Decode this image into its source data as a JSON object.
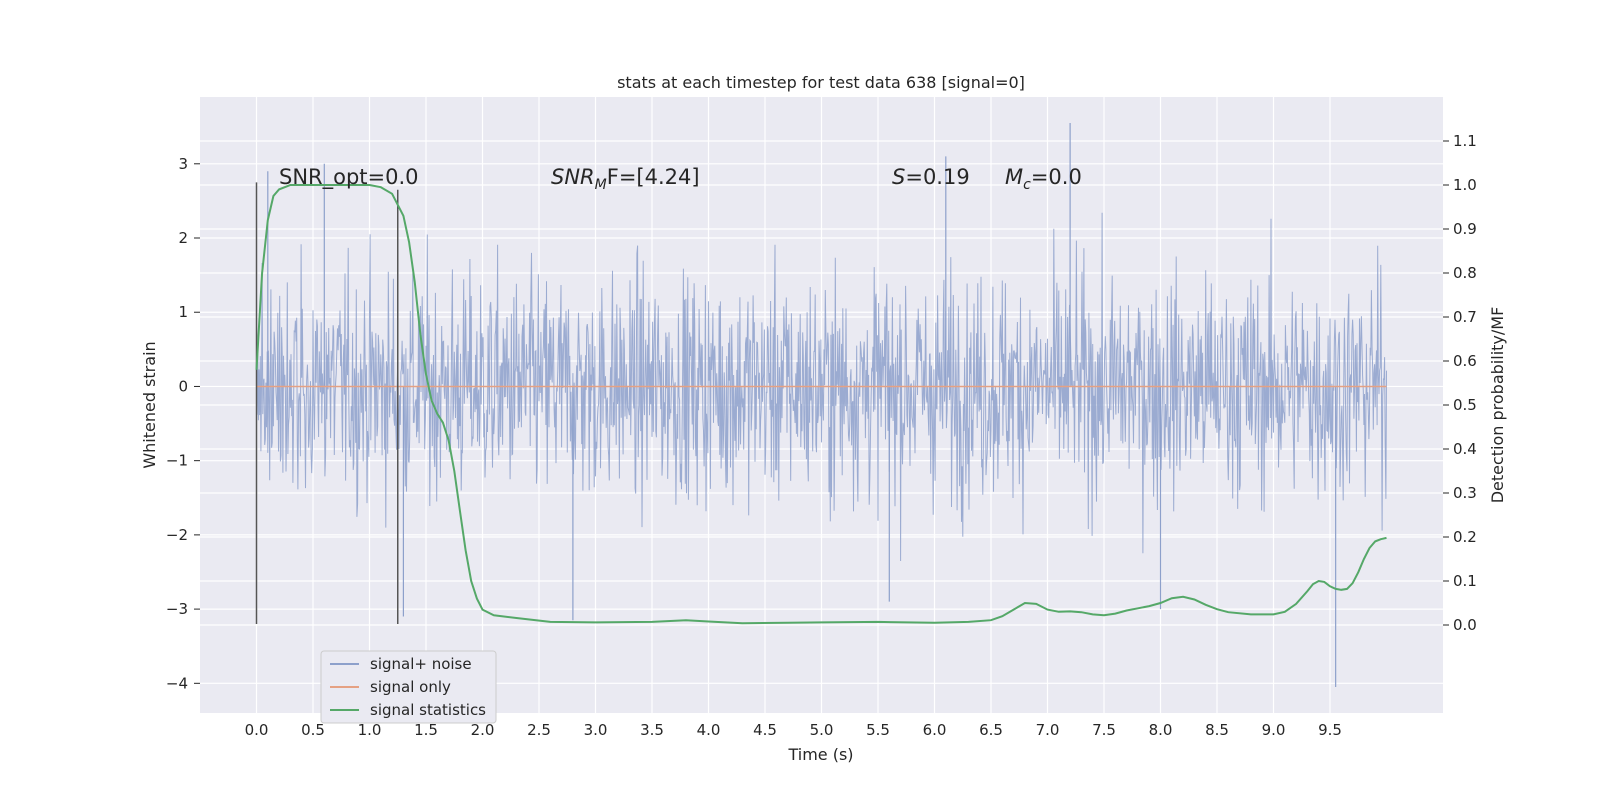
{
  "chart_data": {
    "type": "line",
    "title": "stats at each timestep for test data 638 [signal=0]",
    "xlabel": "Time (s)",
    "ylabel": "Whitened strain",
    "y2label": "Detection probability/MF",
    "xlim": [
      -0.5,
      10.5
    ],
    "ylim": [
      -4.4,
      3.9
    ],
    "y2lim": [
      -0.2,
      1.2
    ],
    "x_ticks": [
      "0.0",
      "0.5",
      "1.0",
      "1.5",
      "2.0",
      "2.5",
      "3.0",
      "3.5",
      "4.0",
      "4.5",
      "5.0",
      "5.5",
      "6.0",
      "6.5",
      "7.0",
      "7.5",
      "8.0",
      "8.5",
      "9.0",
      "9.5"
    ],
    "y_ticks": [
      "3",
      "2",
      "1",
      "0",
      "−1",
      "−2",
      "−3",
      "−4"
    ],
    "y2_ticks": [
      "1.1",
      "1.0",
      "0.9",
      "0.8",
      "0.7",
      "0.6",
      "0.5",
      "0.4",
      "0.3",
      "0.2",
      "0.1",
      "0.0"
    ],
    "grid": true,
    "annotations": {
      "snr_opt": "SNR_opt=0.0",
      "snr_mf_base": "SNR",
      "snr_mf_sub": "M",
      "snr_mf_rest": "F=[4.24]",
      "s_italic": "S",
      "s_value": "=0.19",
      "mc_base": "M",
      "mc_sub": "c",
      "mc_value": "=0.0"
    },
    "vlines": [
      {
        "x": 0.0,
        "ymin": -3.2,
        "ymax": 2.75
      },
      {
        "x": 1.25,
        "ymin": -3.2,
        "ymax": 2.65
      }
    ],
    "series": [
      {
        "name": "signal+ noise",
        "color": "#8da0cb",
        "x_range": [
          0.0,
          10.0
        ],
        "envelope_typical": 1.5,
        "peak_values": [
          [
            0.1,
            2.9
          ],
          [
            0.6,
            3.0
          ],
          [
            1.3,
            -3.1
          ],
          [
            2.8,
            -3.15
          ],
          [
            6.1,
            3.1
          ],
          [
            7.2,
            3.55
          ],
          [
            5.6,
            -2.9
          ],
          [
            9.55,
            -4.05
          ],
          [
            8.0,
            -3.0
          ]
        ]
      },
      {
        "name": "signal only",
        "color": "#e5a183",
        "x": [
          0.0,
          10.0
        ],
        "y": [
          0.0,
          0.0
        ]
      },
      {
        "name": "signal statistics",
        "color": "#55a868",
        "axis": "right",
        "x": [
          0.0,
          0.05,
          0.1,
          0.15,
          0.2,
          0.3,
          0.5,
          0.8,
          1.0,
          1.1,
          1.2,
          1.3,
          1.35,
          1.4,
          1.45,
          1.5,
          1.55,
          1.6,
          1.65,
          1.7,
          1.75,
          1.8,
          1.85,
          1.9,
          1.95,
          2.0,
          2.1,
          2.3,
          2.6,
          3.0,
          3.5,
          3.8,
          4.0,
          4.3,
          4.7,
          5.0,
          5.5,
          6.0,
          6.3,
          6.5,
          6.6,
          6.7,
          6.8,
          6.9,
          7.0,
          7.1,
          7.2,
          7.3,
          7.4,
          7.5,
          7.6,
          7.7,
          7.8,
          7.9,
          8.0,
          8.1,
          8.2,
          8.3,
          8.4,
          8.5,
          8.6,
          8.8,
          9.0,
          9.1,
          9.2,
          9.3,
          9.35,
          9.4,
          9.45,
          9.5,
          9.55,
          9.6,
          9.65,
          9.7,
          9.75,
          9.8,
          9.85,
          9.9,
          9.95,
          10.0
        ],
        "y": [
          0.58,
          0.8,
          0.92,
          0.975,
          0.99,
          1.0,
          1.0,
          1.0,
          1.0,
          0.995,
          0.98,
          0.93,
          0.87,
          0.78,
          0.66,
          0.57,
          0.51,
          0.48,
          0.46,
          0.42,
          0.35,
          0.26,
          0.17,
          0.1,
          0.06,
          0.035,
          0.022,
          0.016,
          0.007,
          0.006,
          0.007,
          0.011,
          0.008,
          0.004,
          0.005,
          0.006,
          0.007,
          0.005,
          0.007,
          0.011,
          0.02,
          0.035,
          0.05,
          0.048,
          0.035,
          0.03,
          0.031,
          0.029,
          0.024,
          0.022,
          0.026,
          0.033,
          0.038,
          0.043,
          0.05,
          0.061,
          0.064,
          0.058,
          0.046,
          0.036,
          0.029,
          0.024,
          0.024,
          0.03,
          0.048,
          0.077,
          0.093,
          0.1,
          0.098,
          0.088,
          0.082,
          0.08,
          0.082,
          0.095,
          0.12,
          0.15,
          0.175,
          0.19,
          0.195,
          0.198
        ]
      }
    ],
    "legend": {
      "placement": "bottom-left",
      "entries": [
        "signal+ noise",
        "signal only",
        "signal statistics"
      ]
    },
    "colors": {
      "plot_background": "#eaeaf2",
      "grid": "#ffffff",
      "vline": "#555555"
    }
  }
}
